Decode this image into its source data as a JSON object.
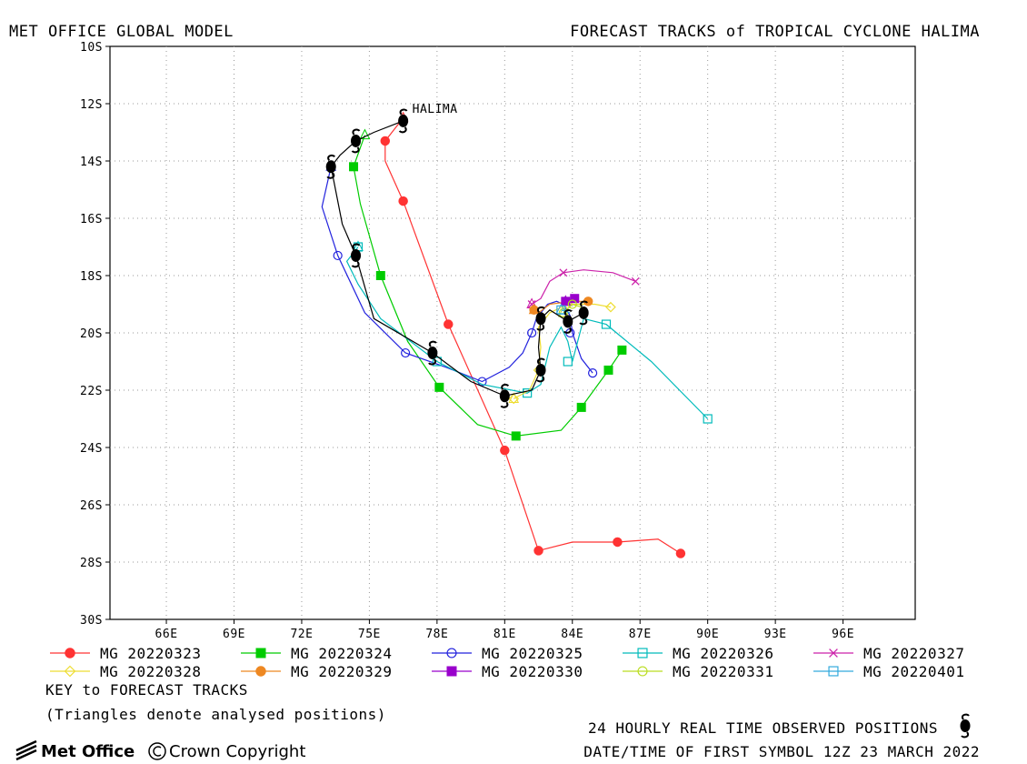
{
  "header": {
    "left_title": "MET OFFICE GLOBAL MODEL",
    "right_title": "FORECAST TRACKS of TROPICAL CYCLONE HALIMA"
  },
  "chart_data": {
    "type": "line",
    "title": "FORECAST TRACKS of TROPICAL CYCLONE HALIMA",
    "storm_label": "HALIMA",
    "xlim": [
      63.5,
      99.2
    ],
    "ylim": [
      -30,
      -10
    ],
    "x_ticks": [
      66,
      69,
      72,
      75,
      78,
      81,
      84,
      87,
      90,
      93,
      96
    ],
    "x_tick_labels": [
      "66E",
      "69E",
      "72E",
      "75E",
      "78E",
      "81E",
      "84E",
      "87E",
      "90E",
      "93E",
      "96E"
    ],
    "y_ticks": [
      -10,
      -12,
      -14,
      -16,
      -18,
      -20,
      -22,
      -24,
      -26,
      -28,
      -30
    ],
    "y_tick_labels": [
      "10S",
      "12S",
      "14S",
      "16S",
      "18S",
      "20S",
      "22S",
      "24S",
      "26S",
      "28S",
      "30S"
    ],
    "grid": true,
    "observed_track": {
      "x": [
        76.5,
        75.2,
        74.4,
        73.7,
        73.3,
        73.8,
        74.4,
        75.2,
        77.8,
        79.5,
        81.0,
        82.2,
        82.6,
        82.5,
        82.6,
        83.0,
        83.8,
        84.5
      ],
      "y": [
        -12.6,
        -13.0,
        -13.3,
        -13.8,
        -14.2,
        -16.2,
        -17.3,
        -19.5,
        -20.7,
        -21.7,
        -22.2,
        -22.0,
        -21.3,
        -20.5,
        -19.5,
        -19.2,
        -19.6,
        -19.3
      ],
      "symbols": [
        {
          "x": 76.5,
          "y": -12.6
        },
        {
          "x": 74.4,
          "y": -13.3
        },
        {
          "x": 73.3,
          "y": -14.2
        },
        {
          "x": 74.4,
          "y": -17.3
        },
        {
          "x": 77.8,
          "y": -20.7
        },
        {
          "x": 81.0,
          "y": -22.2
        },
        {
          "x": 82.6,
          "y": -21.3
        },
        {
          "x": 82.6,
          "y": -19.5
        },
        {
          "x": 83.8,
          "y": -19.6
        },
        {
          "x": 84.5,
          "y": -19.3
        }
      ]
    },
    "series": [
      {
        "name": "MG 20220323",
        "color": "#ff3333",
        "marker": "filled-circle",
        "x": [
          76.5,
          75.7,
          75.7,
          76.5,
          78.5,
          81.0,
          82.5,
          84.0,
          86.0,
          87.8,
          88.8
        ],
        "y": [
          -12.5,
          -13.3,
          -14.0,
          -15.4,
          -19.7,
          -24.1,
          -27.6,
          -27.3,
          -27.3,
          -27.2,
          -27.7
        ],
        "markers_x": [
          75.7,
          76.5,
          78.5,
          81.0,
          82.5,
          86.0,
          88.8
        ],
        "markers_y": [
          -13.3,
          -15.4,
          -19.7,
          -24.1,
          -27.6,
          -27.3,
          -27.7
        ]
      },
      {
        "name": "MG 20220324",
        "color": "#00cc00",
        "marker": "filled-square",
        "x": [
          74.8,
          74.3,
          74.6,
          75.5,
          76.7,
          78.1,
          79.8,
          81.5,
          83.5,
          84.4,
          85.6,
          86.2
        ],
        "y": [
          -13.1,
          -14.2,
          -15.5,
          -18.0,
          -20.3,
          -21.9,
          -23.2,
          -23.6,
          -23.4,
          -22.6,
          -21.3,
          -20.6
        ],
        "markers_x": [
          74.3,
          75.5,
          78.1,
          81.5,
          84.4,
          85.6,
          86.2
        ],
        "markers_y": [
          -14.2,
          -18.0,
          -21.9,
          -23.6,
          -22.6,
          -21.3,
          -20.6
        ]
      },
      {
        "name": "MG 20220325",
        "color": "#2222dd",
        "marker": "open-circle",
        "x": [
          73.3,
          72.9,
          73.6,
          74.8,
          76.6,
          78.4,
          80.0,
          81.2,
          81.8,
          82.2,
          82.4,
          82.9,
          83.3,
          83.6,
          83.9,
          84.0,
          84.4,
          84.9
        ],
        "y": [
          -14.2,
          -15.6,
          -17.3,
          -19.3,
          -20.7,
          -21.2,
          -21.7,
          -21.2,
          -20.7,
          -20.0,
          -19.5,
          -19.0,
          -18.9,
          -19.0,
          -19.4,
          -20.0,
          -20.9,
          -21.4
        ],
        "markers_x": [
          73.3,
          73.6,
          76.6,
          80.0,
          82.2,
          83.9,
          84.9
        ],
        "markers_y": [
          -14.2,
          -17.3,
          -20.7,
          -21.7,
          -20.0,
          -20.0,
          -21.4
        ]
      },
      {
        "name": "MG 20220326",
        "color": "#00bbbb",
        "marker": "open-square",
        "x": [
          74.5,
          74.0,
          74.5,
          75.5,
          78.0,
          80.0,
          82.0,
          82.6,
          83.0,
          83.5,
          83.8,
          84.0,
          84.5,
          85.5,
          87.5,
          90.0
        ],
        "y": [
          -17.0,
          -17.5,
          -18.3,
          -19.5,
          -21.0,
          -21.8,
          -22.1,
          -21.8,
          -20.5,
          -19.8,
          -20.3,
          -21.0,
          -19.5,
          -19.7,
          -21.0,
          -23.0
        ],
        "markers_x": [
          74.5,
          78.0,
          82.0,
          83.8,
          85.5,
          90.0
        ],
        "markers_y": [
          -17.0,
          -21.0,
          -22.1,
          -21.0,
          -19.7,
          -23.0
        ]
      },
      {
        "name": "MG 20220327",
        "color": "#cc22aa",
        "marker": "x",
        "x": [
          82.2,
          82.6,
          83.0,
          83.6,
          84.5,
          85.8,
          86.8
        ],
        "y": [
          -19.0,
          -18.8,
          -18.2,
          -17.9,
          -17.8,
          -17.9,
          -18.2
        ],
        "markers_x": [
          82.2,
          83.6,
          86.8
        ],
        "markers_y": [
          -19.0,
          -17.9,
          -18.2
        ]
      },
      {
        "name": "MG 20220328",
        "color": "#eedd33",
        "marker": "open-diamond",
        "x": [
          81.4,
          82.1,
          82.5,
          82.6,
          82.5,
          83.0,
          83.8,
          85.0,
          85.7
        ],
        "y": [
          -22.3,
          -22.0,
          -21.3,
          -20.5,
          -19.8,
          -19.3,
          -19.0,
          -19.0,
          -19.1
        ],
        "markers_x": [
          81.4,
          82.5,
          83.8,
          85.7
        ],
        "markers_y": [
          -22.3,
          -21.3,
          -19.0,
          -19.1
        ]
      },
      {
        "name": "MG 20220329",
        "color": "#ee8822",
        "marker": "filled-circle",
        "x": [
          82.3,
          82.5,
          83.0,
          84.0,
          84.7
        ],
        "y": [
          -19.2,
          -19.3,
          -19.0,
          -18.9,
          -18.9
        ],
        "markers_x": [
          82.3,
          84.7
        ],
        "markers_y": [
          -19.2,
          -18.9
        ]
      },
      {
        "name": "MG 20220330",
        "color": "#9900cc",
        "marker": "filled-square",
        "x": [
          83.7,
          84.1
        ],
        "y": [
          -18.9,
          -18.8
        ],
        "markers_x": [
          83.7,
          84.1
        ],
        "markers_y": [
          -18.9,
          -18.8
        ]
      },
      {
        "name": "MG 20220331",
        "color": "#bbdd22",
        "marker": "open-circle",
        "x": [
          83.6,
          84.0,
          84.4
        ],
        "y": [
          -19.3,
          -19.0,
          -19.1
        ],
        "markers_x": [
          83.6,
          84.0
        ],
        "markers_y": [
          -19.3,
          -19.0
        ]
      },
      {
        "name": "MG 20220401",
        "color": "#33aadd",
        "marker": "open-square",
        "x": [
          83.5,
          83.9
        ],
        "y": [
          -19.2,
          -19.3
        ],
        "markers_x": [
          83.5
        ],
        "markers_y": [
          -19.2
        ]
      }
    ]
  },
  "legend": {
    "key_title": "KEY to FORECAST TRACKS",
    "key_note": "(Triangles denote analysed positions)"
  },
  "footer": {
    "observed_label": "24 HOURLY REAL TIME OBSERVED POSITIONS",
    "datetime_label": "DATE/TIME OF FIRST SYMBOL 12Z 23 MARCH 2022",
    "brand": "Met Office",
    "copyright": "Crown Copyright"
  }
}
